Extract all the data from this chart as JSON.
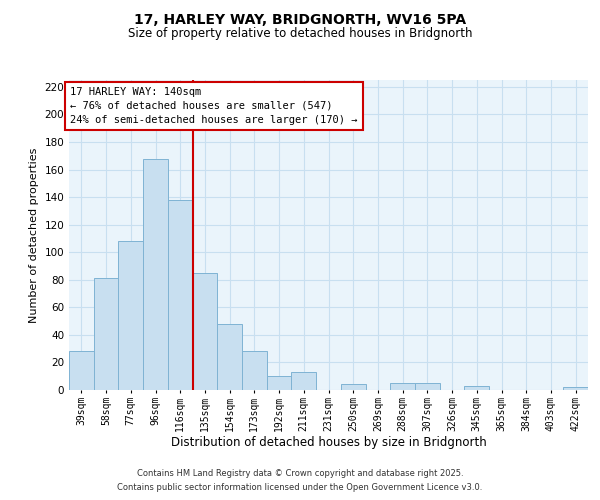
{
  "title": "17, HARLEY WAY, BRIDGNORTH, WV16 5PA",
  "subtitle": "Size of property relative to detached houses in Bridgnorth",
  "xlabel": "Distribution of detached houses by size in Bridgnorth",
  "ylabel": "Number of detached properties",
  "bar_labels": [
    "39sqm",
    "58sqm",
    "77sqm",
    "96sqm",
    "116sqm",
    "135sqm",
    "154sqm",
    "173sqm",
    "192sqm",
    "211sqm",
    "231sqm",
    "250sqm",
    "269sqm",
    "288sqm",
    "307sqm",
    "326sqm",
    "345sqm",
    "365sqm",
    "384sqm",
    "403sqm",
    "422sqm"
  ],
  "bar_values": [
    28,
    81,
    108,
    168,
    138,
    85,
    48,
    28,
    10,
    13,
    0,
    4,
    0,
    5,
    5,
    0,
    3,
    0,
    0,
    0,
    2
  ],
  "bar_color": "#c8dff0",
  "bar_edge_color": "#7fb3d3",
  "bar_edge_width": 0.7,
  "grid_color": "#c8dff0",
  "background_color": "#eaf4fb",
  "vline_color": "#cc0000",
  "vline_index": 4.5,
  "annotation_line1": "17 HARLEY WAY: 140sqm",
  "annotation_line2": "← 76% of detached houses are smaller (547)",
  "annotation_line3": "24% of semi-detached houses are larger (170) →",
  "ylim": [
    0,
    225
  ],
  "yticks": [
    0,
    20,
    40,
    60,
    80,
    100,
    120,
    140,
    160,
    180,
    200,
    220
  ],
  "footer_line1": "Contains HM Land Registry data © Crown copyright and database right 2025.",
  "footer_line2": "Contains public sector information licensed under the Open Government Licence v3.0."
}
